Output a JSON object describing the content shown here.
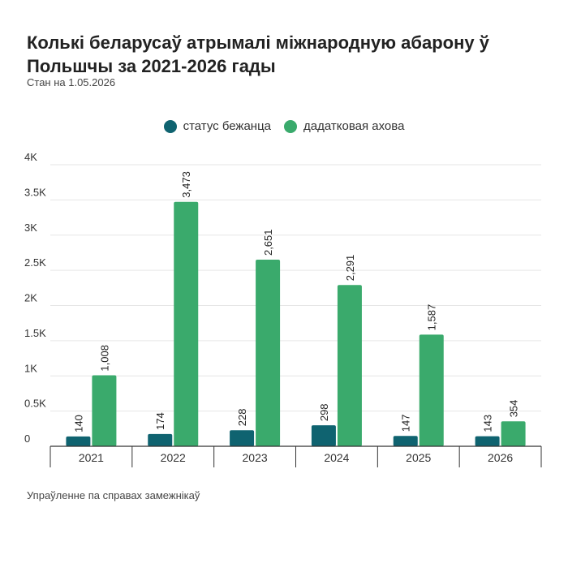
{
  "chart_data": {
    "type": "bar",
    "title": "Колькі беларусаў атрымалі міжнародную абарону ў Польшчы за 2021-2026 гады",
    "subtitle": "Стан на 1.05.2026",
    "source": "Упраўленне па справах замежнікаў",
    "categories": [
      "2021",
      "2022",
      "2023",
      "2024",
      "2025",
      "2026"
    ],
    "series": [
      {
        "name": "статус бежанца",
        "color": "#0f6370",
        "values": [
          140,
          174,
          228,
          298,
          147,
          143
        ],
        "labels": [
          "140",
          "174",
          "228",
          "298",
          "147",
          "143"
        ]
      },
      {
        "name": "дадатковая ахова",
        "color": "#3aaa6c",
        "values": [
          1008,
          3473,
          2651,
          2291,
          1587,
          354
        ],
        "labels": [
          "1,008",
          "3,473",
          "2,651",
          "2,291",
          "1,587",
          "354"
        ]
      }
    ],
    "ylim": [
      0,
      4000
    ],
    "yticks": [
      0,
      500,
      1000,
      1500,
      2000,
      2500,
      3000,
      3500,
      4000
    ],
    "ytick_labels": [
      "0",
      "0.5K",
      "1K",
      "1.5K",
      "2K",
      "2.5K",
      "3K",
      "3.5K",
      "4K"
    ],
    "xlabel": "",
    "ylabel": "",
    "grid": true,
    "legend_position": "top-center"
  }
}
